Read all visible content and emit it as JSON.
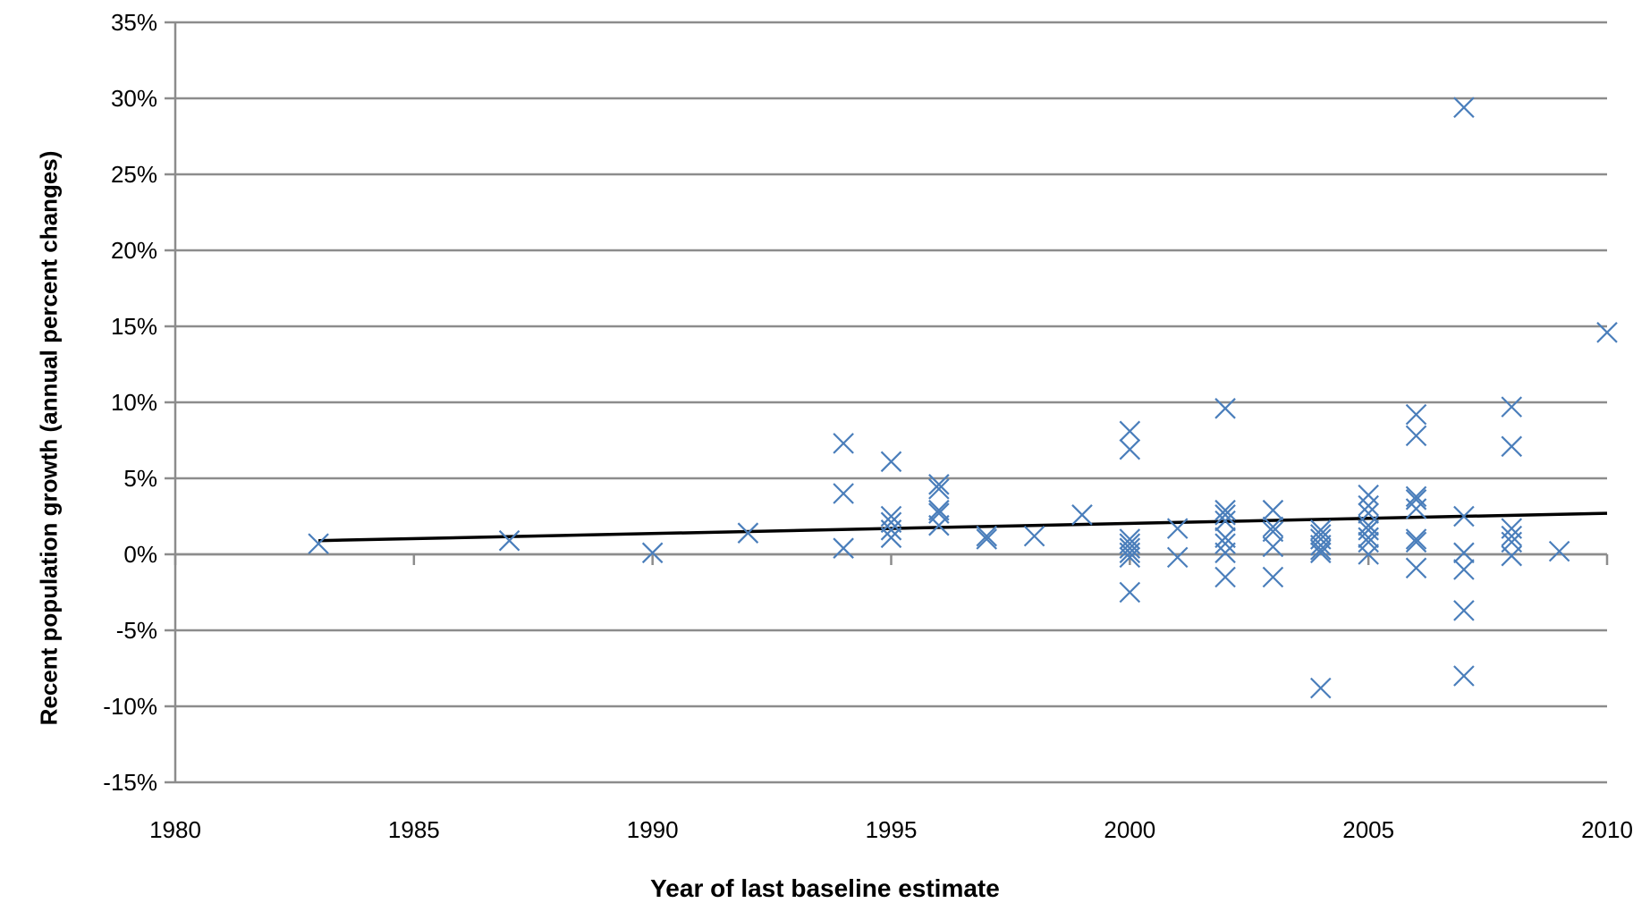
{
  "chart_data": {
    "type": "scatter",
    "title": "",
    "xlabel": "Year of last baseline estimate",
    "ylabel": "Recent population growth (annual percent changes)",
    "xlim": [
      1980,
      2010
    ],
    "ylim": [
      -0.15,
      0.35
    ],
    "xticks": [
      1980,
      1985,
      1990,
      1995,
      2000,
      2005,
      2010
    ],
    "xtick_labels": [
      "1980",
      "1985",
      "1990",
      "1995",
      "2000",
      "2005",
      "2010"
    ],
    "yticks": [
      -0.15,
      -0.1,
      -0.05,
      0,
      0.05,
      0.1,
      0.15,
      0.2,
      0.25,
      0.3,
      0.35
    ],
    "ytick_labels": [
      "-15%",
      "-10%",
      "-5%",
      "0%",
      "5%",
      "10%",
      "15%",
      "20%",
      "25%",
      "30%",
      "35%"
    ],
    "grid": "horizontal",
    "legend": "none",
    "marker": "x",
    "marker_color": "#4a7ebb",
    "trendline_color": "#000000",
    "points": [
      [
        1983,
        0.007
      ],
      [
        1987,
        0.009
      ],
      [
        1990,
        0.001
      ],
      [
        1992,
        0.014
      ],
      [
        1994,
        0.073
      ],
      [
        1994,
        0.04
      ],
      [
        1994,
        0.004
      ],
      [
        1995,
        0.061
      ],
      [
        1995,
        0.025
      ],
      [
        1995,
        0.021
      ],
      [
        1995,
        0.016
      ],
      [
        1995,
        0.011
      ],
      [
        1996,
        0.046
      ],
      [
        1996,
        0.043
      ],
      [
        1996,
        0.029
      ],
      [
        1996,
        0.027
      ],
      [
        1996,
        0.019
      ],
      [
        1997,
        0.012
      ],
      [
        1997,
        0.01
      ],
      [
        1998,
        0.012
      ],
      [
        1999,
        0.026
      ],
      [
        2000,
        0.081
      ],
      [
        2000,
        0.069
      ],
      [
        2000,
        0.01
      ],
      [
        2000,
        0.007
      ],
      [
        2000,
        0.004
      ],
      [
        2000,
        0.001
      ],
      [
        2000,
        -0.002
      ],
      [
        2000,
        -0.025
      ],
      [
        2001,
        0.017
      ],
      [
        2001,
        -0.002
      ],
      [
        2002,
        0.096
      ],
      [
        2002,
        0.029
      ],
      [
        2002,
        0.026
      ],
      [
        2002,
        0.022
      ],
      [
        2002,
        0.011
      ],
      [
        2002,
        0.007
      ],
      [
        2002,
        0.001
      ],
      [
        2002,
        -0.015
      ],
      [
        2003,
        0.029
      ],
      [
        2003,
        0.018
      ],
      [
        2003,
        0.015
      ],
      [
        2003,
        0.005
      ],
      [
        2003,
        -0.015
      ],
      [
        2004,
        0.016
      ],
      [
        2004,
        0.013
      ],
      [
        2004,
        0.01
      ],
      [
        2004,
        0.006
      ],
      [
        2004,
        0.003
      ],
      [
        2004,
        0.001
      ],
      [
        2004,
        -0.088
      ],
      [
        2005,
        0.039
      ],
      [
        2005,
        0.032
      ],
      [
        2005,
        0.027
      ],
      [
        2005,
        0.019
      ],
      [
        2005,
        0.016
      ],
      [
        2005,
        0.011
      ],
      [
        2005,
        0.008
      ],
      [
        2005,
        0.0
      ],
      [
        2006,
        0.092
      ],
      [
        2006,
        0.078
      ],
      [
        2006,
        0.038
      ],
      [
        2006,
        0.036
      ],
      [
        2006,
        0.03
      ],
      [
        2006,
        0.01
      ],
      [
        2006,
        0.008
      ],
      [
        2006,
        -0.009
      ],
      [
        2007,
        0.294
      ],
      [
        2007,
        0.025
      ],
      [
        2007,
        0.001
      ],
      [
        2007,
        -0.01
      ],
      [
        2007,
        -0.037
      ],
      [
        2007,
        -0.08
      ],
      [
        2008,
        0.097
      ],
      [
        2008,
        0.071
      ],
      [
        2008,
        0.017
      ],
      [
        2008,
        0.012
      ],
      [
        2008,
        0.008
      ],
      [
        2008,
        -0.001
      ],
      [
        2009,
        0.002
      ],
      [
        2010,
        0.146
      ]
    ],
    "trendline": {
      "x": [
        1983,
        2010
      ],
      "y": [
        0.009,
        0.027
      ]
    }
  }
}
